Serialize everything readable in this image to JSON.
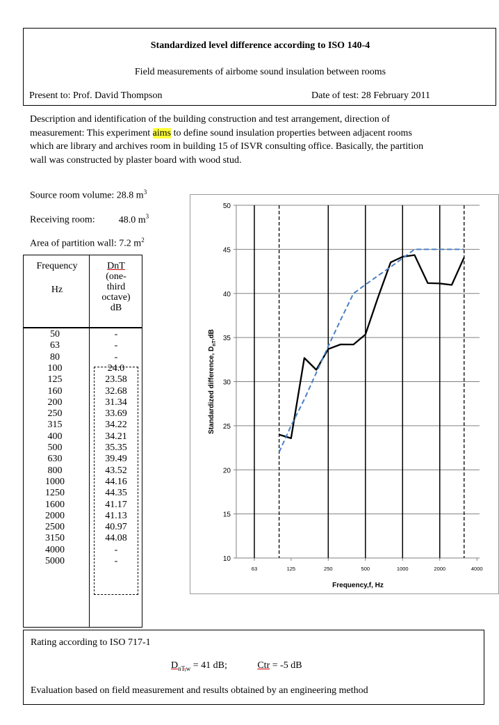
{
  "header": {
    "title": "Standardized level difference according to ISO 140-4",
    "subtitle": "Field measurements of airbome sound insulation between rooms",
    "present_to": "Present to: Prof. David Thompson",
    "date_of_test": "Date of test: 28 February 2011"
  },
  "description": {
    "line1": "Description and identification of the building construction and test arrangement, direction of",
    "line2_pre": "measurement:  This experiment ",
    "line2_hl": "aims",
    "line2_post": " to define sound insulation properties between adjacent rooms",
    "line3": "which are library and archives room in building 15 of ISVR consulting office. Basically, the partition",
    "line4": "wall was constructed by plaster board with wood stud."
  },
  "meta": {
    "source_label": "Source room volume: 28.8 m",
    "source_exp": "3",
    "receiving_label": "Receiving room:",
    "receiving_value": "48.0 m",
    "receiving_exp": "3",
    "area_label": "Area of partition wall: 7.2 m",
    "area_exp": "2"
  },
  "table": {
    "col1_header": [
      "Frequency",
      "",
      "Hz"
    ],
    "col2_header": [
      "DnT",
      "(one-",
      "third",
      "octave)",
      "dB"
    ],
    "rows": [
      {
        "f": "50",
        "v": "-"
      },
      {
        "f": "63",
        "v": "-"
      },
      {
        "f": "80",
        "v": "-"
      },
      {
        "f": "100",
        "v": "24.0"
      },
      {
        "f": "125",
        "v": "23.58"
      },
      {
        "f": "160",
        "v": "32.68"
      },
      {
        "f": "200",
        "v": "31.34"
      },
      {
        "f": "250",
        "v": "33.69"
      },
      {
        "f": "315",
        "v": "34.22"
      },
      {
        "f": "400",
        "v": "34.21"
      },
      {
        "f": "500",
        "v": "35.35"
      },
      {
        "f": "630",
        "v": "39.49"
      },
      {
        "f": "800",
        "v": "43.52"
      },
      {
        "f": "1000",
        "v": "44.16"
      },
      {
        "f": "1250",
        "v": "44.35"
      },
      {
        "f": "1600",
        "v": "41.17"
      },
      {
        "f": "2000",
        "v": "41.13"
      },
      {
        "f": "2500",
        "v": "40.97"
      },
      {
        "f": "3150",
        "v": "44.08"
      },
      {
        "f": "4000",
        "v": "-"
      },
      {
        "f": "5000",
        "v": "-"
      }
    ]
  },
  "chart_data": {
    "type": "line",
    "xlabel": "Frequency,f, Hz",
    "ylabel": "Standardized difference, D",
    "ylabel_sub": "nT",
    "ylabel_unit": ",dB",
    "x_scale": "log",
    "xlim": [
      45,
      4200
    ],
    "ylim": [
      10,
      50
    ],
    "y_ticks": [
      "10",
      "15",
      "20",
      "25",
      "30",
      "35",
      "40",
      "45",
      "50"
    ],
    "x_ticks": [
      {
        "value": 63,
        "label": "63"
      },
      {
        "value": 125,
        "label": "125"
      },
      {
        "value": 250,
        "label": "250"
      },
      {
        "value": 500,
        "label": "500"
      },
      {
        "value": 1000,
        "label": "1000"
      },
      {
        "value": 2000,
        "label": "2000"
      },
      {
        "value": 4000,
        "label": "4000"
      }
    ],
    "solid_verticals": [
      63,
      250,
      500,
      1000,
      2000
    ],
    "dashed_verticals": [
      100,
      3150
    ],
    "series": [
      {
        "style": "solid",
        "color": "#000000",
        "x": [
          100,
          125,
          160,
          200,
          250,
          315,
          400,
          500,
          630,
          800,
          1000,
          1250,
          1600,
          2000,
          2500,
          3150
        ],
        "y": [
          24.0,
          23.58,
          32.68,
          31.34,
          33.69,
          34.22,
          34.21,
          35.35,
          39.49,
          43.52,
          44.16,
          44.35,
          41.17,
          41.13,
          40.97,
          44.08
        ]
      },
      {
        "style": "dashed",
        "color": "#4a7fc4",
        "x": [
          100,
          125,
          160,
          200,
          250,
          315,
          400,
          500,
          630,
          800,
          1000,
          1250,
          1600,
          2000,
          2500,
          3150
        ],
        "y": [
          22,
          25,
          28,
          31,
          34,
          37,
          40,
          41,
          42,
          43,
          44,
          45,
          45,
          45,
          45,
          45
        ]
      }
    ],
    "grid": true
  },
  "rating": {
    "title": "Rating according to ISO 717-1",
    "dntw_main": "D",
    "dntw_sub": "nT,w",
    "dntw_value": " = 41 dB;",
    "ctr_label": "Ctr",
    "ctr_value": " = -5 dB",
    "evaluation": "Evaluation based on field measurement and results obtained by an engineering method"
  }
}
